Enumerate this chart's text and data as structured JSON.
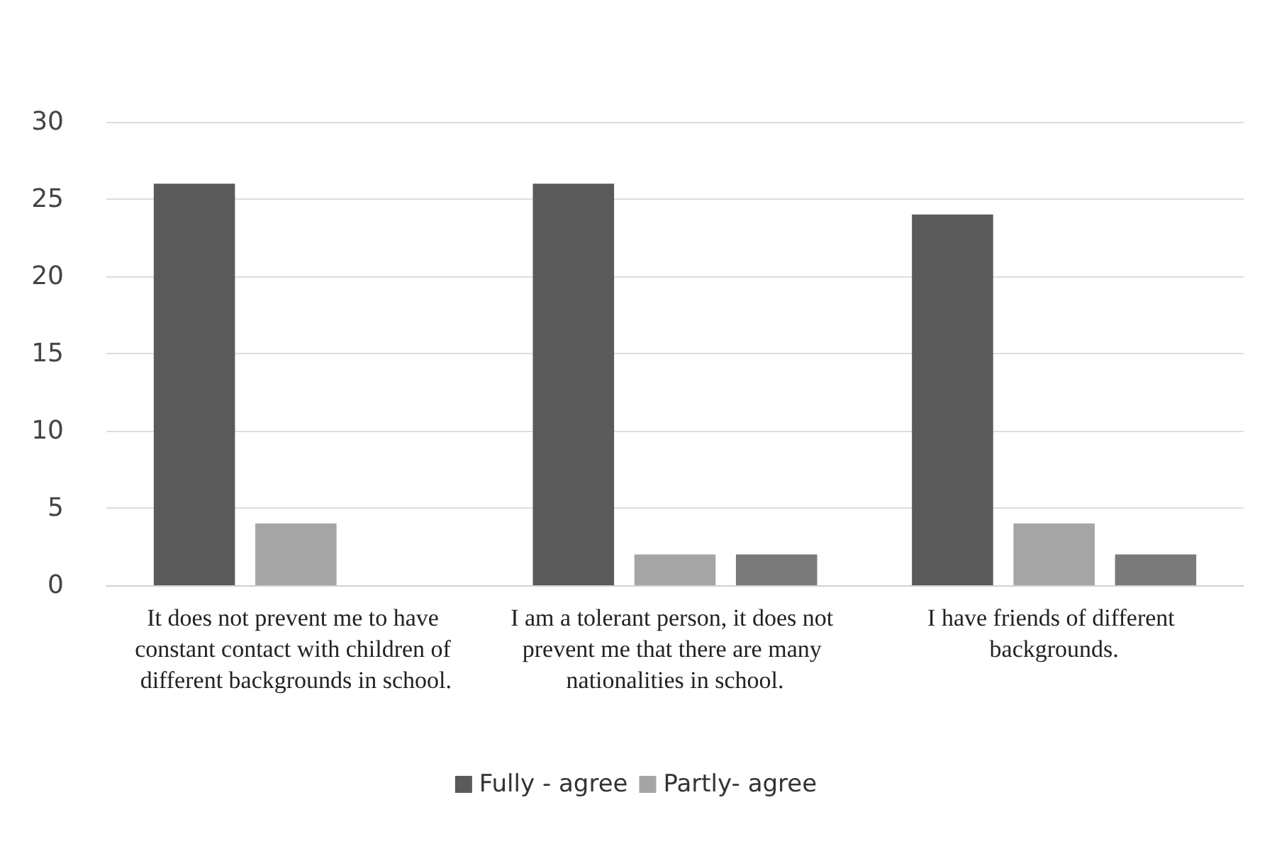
{
  "chart_data": {
    "type": "bar",
    "categories": [
      "It does not prevent me to have constant contact with children of different backgrounds in school.",
      "I am a tolerant person, it does not prevent me that there are many nationalities in school.",
      "I have friends of different backgrounds."
    ],
    "series": [
      {
        "name": "Fully - agree",
        "color": "#5a5a5a",
        "values": [
          26,
          26,
          24
        ]
      },
      {
        "name": "Partly- agree",
        "color": "#a5a5a5",
        "values": [
          4,
          2,
          4
        ]
      },
      {
        "color": "#7a7a7a",
        "values": [
          0,
          2,
          2
        ]
      }
    ],
    "ylim": [
      0,
      30
    ],
    "yticks": [
      0,
      5,
      10,
      15,
      20,
      25,
      30
    ],
    "grid": "y",
    "legend": "bottom"
  }
}
